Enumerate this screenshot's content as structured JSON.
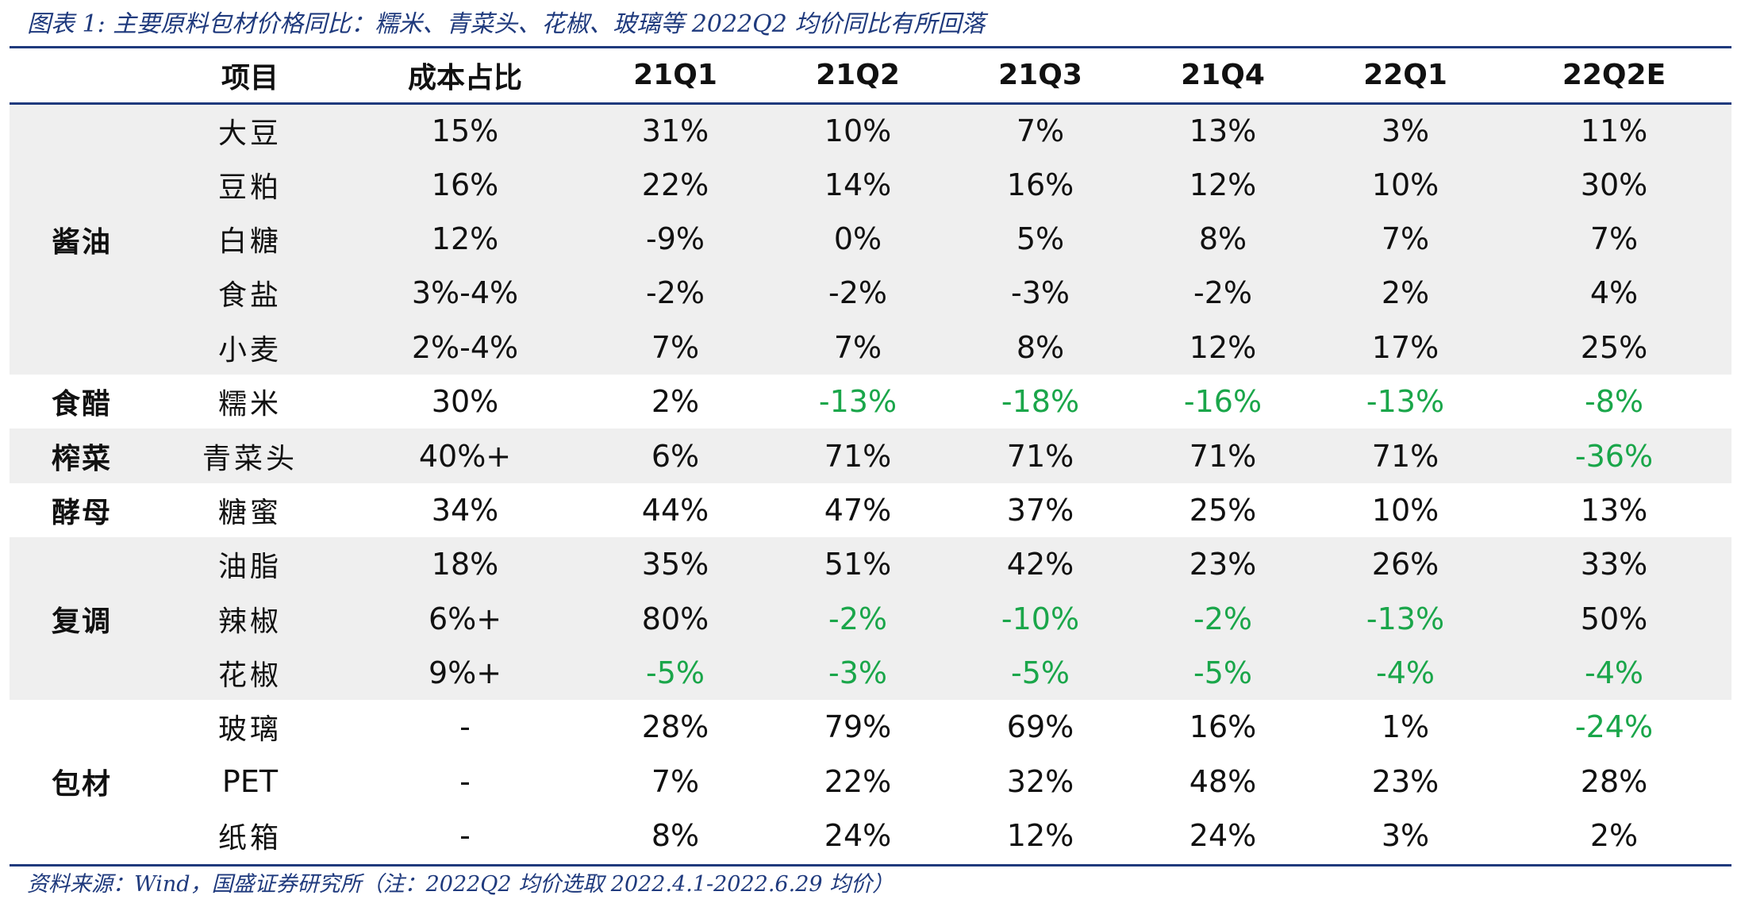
{
  "caption": "图表 1:  主要原料包材价格同比：糯米、青菜头、花椒、玻璃等 2022Q2 均价同比有所回落",
  "source": "资料来源：Wind，国盛证券研究所（注：2022Q2 均价选取 2022.4.1-2022.6.29 均价）",
  "colors": {
    "accent": "#1f3a7d",
    "decline_green": "#1aa64a",
    "row_shade": "#efefef"
  },
  "table": {
    "headers": [
      "",
      "项目",
      "成本占比",
      "21Q1",
      "21Q2",
      "21Q3",
      "21Q4",
      "22Q1",
      "22Q2E"
    ],
    "groups": [
      {
        "name": "酱油",
        "rows": [
          {
            "item": "大豆",
            "share": "15%",
            "values": [
              "31%",
              "10%",
              "7%",
              "13%",
              "3%",
              "11%"
            ]
          },
          {
            "item": "豆粕",
            "share": "16%",
            "values": [
              "22%",
              "14%",
              "16%",
              "12%",
              "10%",
              "30%"
            ]
          },
          {
            "item": "白糖",
            "share": "12%",
            "values": [
              "-9%",
              "0%",
              "5%",
              "8%",
              "7%",
              "7%"
            ]
          },
          {
            "item": "食盐",
            "share": "3%-4%",
            "values": [
              "-2%",
              "-2%",
              "-3%",
              "-2%",
              "2%",
              "4%"
            ]
          },
          {
            "item": "小麦",
            "share": "2%-4%",
            "values": [
              "7%",
              "7%",
              "8%",
              "12%",
              "17%",
              "25%"
            ]
          }
        ]
      },
      {
        "name": "食醋",
        "rows": [
          {
            "item": "糯米",
            "share": "30%",
            "values": [
              "2%",
              "-13%",
              "-18%",
              "-16%",
              "-13%",
              "-8%"
            ]
          }
        ]
      },
      {
        "name": "榨菜",
        "rows": [
          {
            "item": "青菜头",
            "share": "40%+",
            "values": [
              "6%",
              "71%",
              "71%",
              "71%",
              "71%",
              "-36%"
            ]
          }
        ]
      },
      {
        "name": "酵母",
        "rows": [
          {
            "item": "糖蜜",
            "share": "34%",
            "values": [
              "44%",
              "47%",
              "37%",
              "25%",
              "10%",
              "13%"
            ]
          }
        ]
      },
      {
        "name": "复调",
        "rows": [
          {
            "item": "油脂",
            "share": "18%",
            "values": [
              "35%",
              "51%",
              "42%",
              "23%",
              "26%",
              "33%"
            ]
          },
          {
            "item": "辣椒",
            "share": "6%+",
            "values": [
              "80%",
              "-2%",
              "-10%",
              "-2%",
              "-13%",
              "50%"
            ]
          },
          {
            "item": "花椒",
            "share": "9%+",
            "values": [
              "-5%",
              "-3%",
              "-5%",
              "-5%",
              "-4%",
              "-4%"
            ]
          }
        ]
      },
      {
        "name": "包材",
        "rows": [
          {
            "item": "玻璃",
            "share": "-",
            "values": [
              "28%",
              "79%",
              "69%",
              "16%",
              "1%",
              "-24%"
            ]
          },
          {
            "item": "PET",
            "share": "-",
            "values": [
              "7%",
              "22%",
              "32%",
              "48%",
              "23%",
              "28%"
            ]
          },
          {
            "item": "纸箱",
            "share": "-",
            "values": [
              "8%",
              "24%",
              "12%",
              "24%",
              "3%",
              "2%"
            ]
          }
        ]
      }
    ]
  }
}
